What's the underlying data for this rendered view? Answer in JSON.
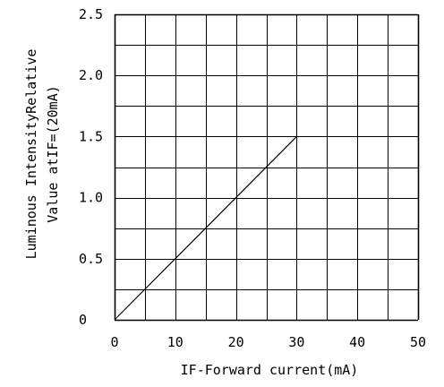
{
  "chart_data": {
    "type": "line",
    "title": "",
    "xlabel": "IF-Forward current(mA)",
    "ylabel_lines": [
      "Luminous IntensityRelative",
      "Value atIF=(20mA)"
    ],
    "xlim": [
      0,
      50
    ],
    "ylim": [
      0,
      2.5
    ],
    "x_ticks": [
      0,
      10,
      20,
      30,
      40,
      50
    ],
    "x_tick_labels": [
      "0",
      "10",
      "20",
      "30",
      "40",
      "50"
    ],
    "y_ticks": [
      0,
      0.5,
      1.0,
      1.5,
      2.0,
      2.5
    ],
    "y_tick_labels": [
      "0",
      "0.5",
      "1.0",
      "1.5",
      "2.0",
      "2.5"
    ],
    "grid": true,
    "grid_x_step": 5,
    "grid_y_step": 0.25,
    "series": [
      {
        "x": [
          0,
          30
        ],
        "y": [
          0,
          1.5
        ]
      }
    ],
    "colors": {
      "line": "#000000",
      "grid": "#000000",
      "background": "#ffffff"
    }
  }
}
